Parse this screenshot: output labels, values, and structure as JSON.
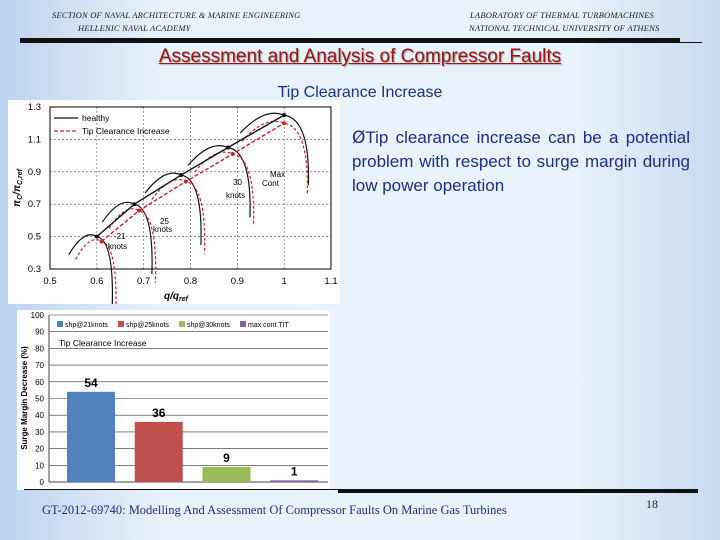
{
  "header": {
    "left_line1": "SECTION OF NAVAL ARCHITECTURE & MARINE ENGINEERING",
    "left_line2": "HELLENIC NAVAL ACADEMY",
    "right_line1": "LABORATORY OF THERMAL TURBOMACHINES",
    "right_line2": "NATIONAL TECHNICAL UNIVERSITY OF ATHENS"
  },
  "title": "Assessment and Analysis of Compressor Faults",
  "subtitle": "Tip Clearance Increase",
  "bullet": {
    "marker": "Ø",
    "text": "Tip clearance increase can be a potential problem with respect to surge margin during low power operation"
  },
  "footer": "GT-2012-69740: Modelling And Assessment Of Compressor Faults On Marine Gas Turbines",
  "page_number": "18",
  "chart_data": [
    {
      "type": "line",
      "title": "",
      "xlabel": "q/q_ref",
      "ylabel": "π_C/π_C,ref",
      "xlim": [
        0.5,
        1.1
      ],
      "ylim": [
        0.3,
        1.3
      ],
      "xticks": [
        "0.5",
        "0.6",
        "0.7",
        "0.8",
        "0.9",
        "1",
        "1.1"
      ],
      "yticks": [
        "0.3",
        "0.5",
        "0.7",
        "0.9",
        "1.1",
        "1.3"
      ],
      "grid": true,
      "legend": "top-left",
      "legend_entries": [
        "healthy",
        "Tip Clearance Increase"
      ],
      "colors": {
        "healthy": "#111111",
        "Tip Clearance Increase": "#cc2222"
      },
      "series": [
        {
          "name": "healthy",
          "x": [
            0.6,
            0.68,
            0.78,
            0.88,
            1.0
          ],
          "y": [
            0.5,
            0.7,
            0.88,
            1.05,
            1.25
          ]
        },
        {
          "name": "Tip Clearance Increase",
          "x": [
            0.61,
            0.69,
            0.79,
            0.89,
            1.0
          ],
          "y": [
            0.47,
            0.66,
            0.84,
            1.01,
            1.2
          ]
        }
      ],
      "annotations": [
        "21 knots",
        "25 knots",
        "30 knots",
        "Max Cont"
      ]
    },
    {
      "type": "bar",
      "title": "",
      "annotation_label": "Tip Clearance Increase",
      "xlabel": "",
      "ylabel": "Surge Margin Decrease (%)",
      "ylim": [
        0,
        100
      ],
      "yticks": [
        "0",
        "10",
        "20",
        "30",
        "40",
        "50",
        "60",
        "70",
        "80",
        "90",
        "100"
      ],
      "grid": true,
      "legend": "top",
      "categories": [
        "shp@21knots",
        "shp@25knots",
        "shp@30knots",
        "max cont TIT"
      ],
      "values": [
        54,
        36,
        9,
        1
      ],
      "data_labels": [
        "54",
        "36",
        "9",
        "1"
      ],
      "colors": [
        "#4f81bd",
        "#c0504d",
        "#9bbb59",
        "#8064a2"
      ]
    }
  ]
}
